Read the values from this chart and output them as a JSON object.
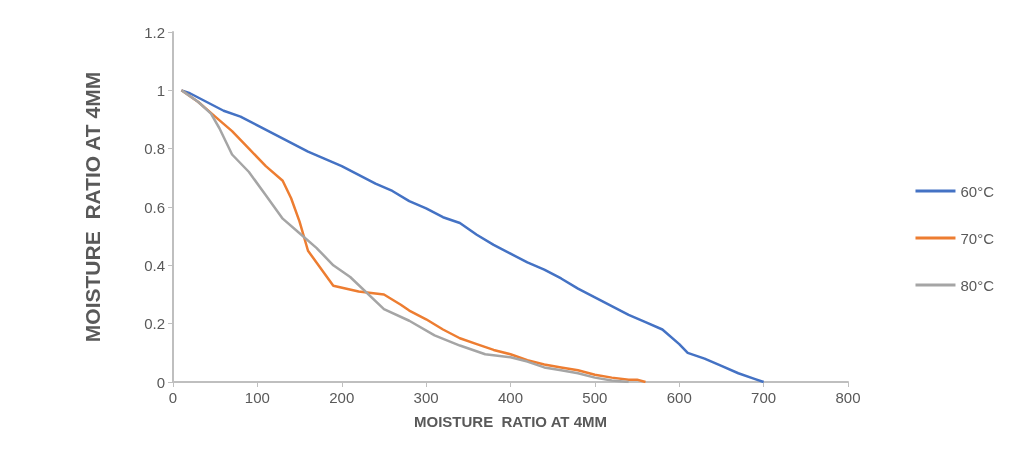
{
  "chart_data": {
    "type": "line",
    "xlabel": "MOISTURE  RATIO AT 4MM",
    "ylabel": "MOISTURE  RATIO AT 4MM",
    "xlim": [
      0,
      800
    ],
    "xticks": [
      0,
      100,
      200,
      300,
      400,
      500,
      600,
      700,
      800
    ],
    "ylim": [
      0,
      1.2
    ],
    "yticks": [
      0,
      0.2,
      0.4,
      0.6,
      0.8,
      1,
      1.2
    ],
    "grid": false,
    "legend": "right",
    "marker": "none",
    "line_style": "solid",
    "series": [
      {
        "name": "60°C",
        "color": "#4472c4",
        "x": [
          10,
          20,
          40,
          60,
          80,
          100,
          120,
          140,
          160,
          180,
          200,
          220,
          240,
          260,
          280,
          300,
          320,
          340,
          360,
          380,
          400,
          420,
          440,
          460,
          480,
          500,
          520,
          540,
          560,
          580,
          600,
          610,
          630,
          650,
          670,
          690,
          700
        ],
        "values": [
          1,
          0.99,
          0.96,
          0.93,
          0.91,
          0.88,
          0.85,
          0.82,
          0.79,
          0.765,
          0.74,
          0.71,
          0.68,
          0.655,
          0.62,
          0.595,
          0.565,
          0.545,
          0.505,
          0.47,
          0.44,
          0.41,
          0.385,
          0.355,
          0.32,
          0.29,
          0.26,
          0.23,
          0.205,
          0.18,
          0.13,
          0.1,
          0.08,
          0.055,
          0.03,
          0.01,
          0
        ]
      },
      {
        "name": "70°C",
        "color": "#ed7d31",
        "x": [
          10,
          30,
          50,
          70,
          90,
          110,
          130,
          140,
          150,
          160,
          190,
          220,
          250,
          270,
          280,
          300,
          320,
          340,
          360,
          380,
          400,
          420,
          440,
          460,
          480,
          500,
          520,
          540,
          550,
          560
        ],
        "values": [
          1,
          0.96,
          0.91,
          0.86,
          0.8,
          0.74,
          0.69,
          0.63,
          0.55,
          0.45,
          0.33,
          0.31,
          0.3,
          0.265,
          0.245,
          0.215,
          0.18,
          0.15,
          0.13,
          0.11,
          0.095,
          0.075,
          0.06,
          0.05,
          0.04,
          0.025,
          0.015,
          0.008,
          0.008,
          0
        ]
      },
      {
        "name": "80°C",
        "color": "#a5a5a5",
        "x": [
          10,
          30,
          45,
          55,
          70,
          90,
          110,
          130,
          150,
          170,
          190,
          210,
          250,
          280,
          310,
          340,
          370,
          400,
          420,
          440,
          460,
          480,
          500,
          520,
          540
        ],
        "values": [
          1,
          0.96,
          0.92,
          0.87,
          0.78,
          0.72,
          0.64,
          0.56,
          0.51,
          0.46,
          0.4,
          0.36,
          0.25,
          0.21,
          0.16,
          0.125,
          0.095,
          0.085,
          0.07,
          0.05,
          0.04,
          0.03,
          0.015,
          0.005,
          0
        ]
      }
    ]
  }
}
